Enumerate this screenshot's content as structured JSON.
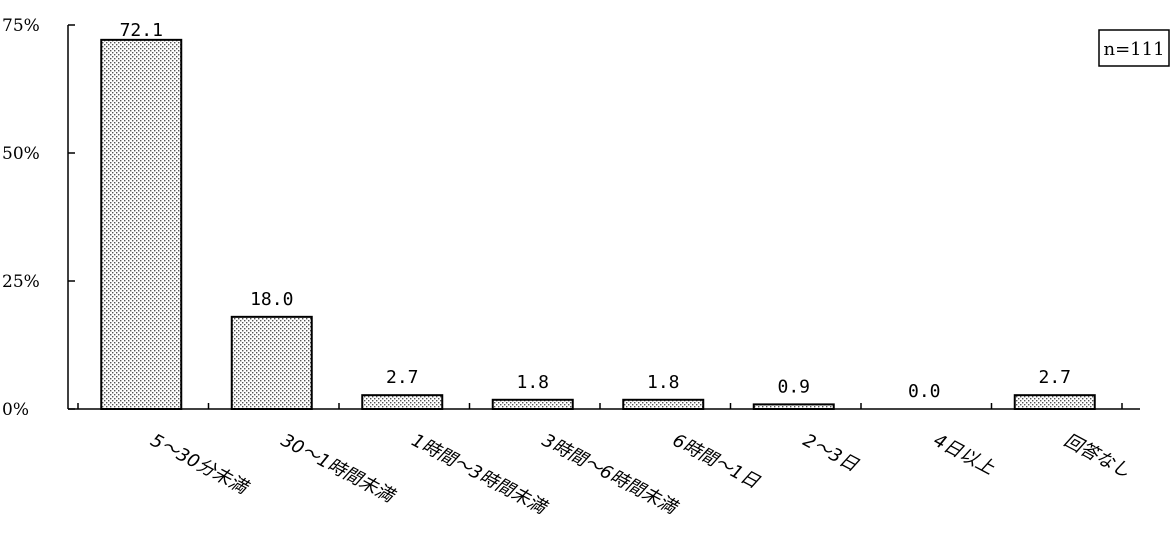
{
  "chart_data": {
    "type": "bar",
    "categories": [
      "5～30分未満",
      "30～1時間未満",
      "1時間～3時間未満",
      "3時間～6時間未満",
      "6時間～1日",
      "2～3日",
      "4日以上",
      "回答なし"
    ],
    "values": [
      72.1,
      18.0,
      2.7,
      1.8,
      1.8,
      0.9,
      0.0,
      2.7
    ],
    "value_labels": [
      "72.1",
      "18.0",
      "2.7",
      "1.8",
      "1.8",
      "0.9",
      "0.0",
      "2.7"
    ],
    "yticks": [
      "0%",
      "25%",
      "50%",
      "75%"
    ],
    "ytick_values": [
      0,
      25,
      50,
      75
    ],
    "ylim": [
      0,
      75
    ],
    "annotation": "n=111",
    "title": "",
    "xlabel": "",
    "ylabel": "",
    "legend": "none",
    "grid": false,
    "bar_fill": "dotted",
    "colors": {
      "bar_fill": "#ffffff",
      "bar_dots": "#555555",
      "axis": "#000000"
    }
  }
}
